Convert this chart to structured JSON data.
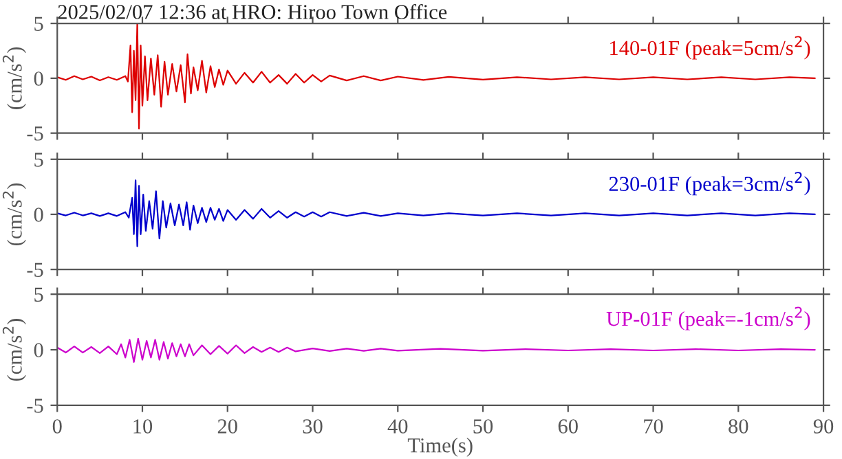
{
  "chart_data": [
    {
      "type": "line",
      "title": "2025/02/07 12:36 at HRO: Hiroo Town Office",
      "ylabel": "(cm/s$^{2}$)",
      "xlim": [
        0,
        90
      ],
      "ylim": [
        -5,
        5
      ],
      "yticks": [
        -5,
        0,
        5
      ],
      "tick_labels": "y",
      "legend": "top right",
      "grid": false,
      "series": [
        {
          "name": "140-01F (peak=5cm/s$^{2}$)",
          "color": "#dd0000",
          "x": [
            0,
            1,
            2,
            3,
            4,
            5,
            6,
            7,
            8,
            8.3,
            8.6,
            8.8,
            9.0,
            9.2,
            9.4,
            9.6,
            9.8,
            10,
            10.3,
            10.6,
            11,
            11.4,
            11.8,
            12.2,
            12.6,
            13,
            13.5,
            14,
            14.5,
            15,
            15.3,
            15.7,
            16,
            16.5,
            17,
            17.5,
            18,
            18.5,
            19,
            19.5,
            20,
            21,
            22,
            23,
            24,
            25,
            26,
            27,
            28,
            29,
            30,
            31,
            32,
            34,
            36,
            38,
            40,
            43,
            46,
            50,
            54,
            58,
            62,
            66,
            70,
            74,
            78,
            82,
            86,
            89
          ],
          "values": [
            0.1,
            -0.15,
            0.2,
            -0.1,
            0.15,
            -0.2,
            0.1,
            -0.15,
            0.2,
            -0.3,
            3,
            -3.1,
            2.5,
            -2,
            5,
            -4.6,
            3,
            -2.5,
            2,
            -2,
            1.8,
            -1.5,
            2.1,
            -2.6,
            1.5,
            -1.5,
            1.3,
            -1.2,
            1.2,
            -2.2,
            2.2,
            -1.4,
            1,
            -1.1,
            1.6,
            -1.3,
            1.1,
            -0.8,
            0.8,
            -0.6,
            0.7,
            -0.5,
            0.5,
            -0.4,
            0.6,
            -0.4,
            0.3,
            -0.5,
            0.4,
            -0.4,
            0.3,
            -0.3,
            0.25,
            -0.2,
            0.2,
            -0.2,
            0.15,
            -0.15,
            0.12,
            -0.12,
            0.1,
            -0.1,
            0.1,
            -0.1,
            0.1,
            -0.1,
            0.1,
            -0.1,
            0.1,
            0
          ]
        }
      ]
    },
    {
      "type": "line",
      "ylabel": "(cm/s$^{2}$)",
      "xlim": [
        0,
        90
      ],
      "ylim": [
        -5,
        5
      ],
      "yticks": [
        -5,
        0,
        5
      ],
      "tick_labels": "y",
      "legend": "top right",
      "grid": false,
      "series": [
        {
          "name": "230-01F (peak=3cm/s$^{2}$)",
          "color": "#0000cc",
          "x": [
            0,
            1,
            2,
            3,
            4,
            5,
            6,
            7,
            8,
            8.4,
            8.8,
            9.0,
            9.2,
            9.4,
            9.6,
            9.8,
            10.1,
            10.4,
            10.8,
            11.2,
            11.6,
            12,
            12.4,
            12.8,
            13.3,
            13.8,
            14.3,
            14.8,
            15.2,
            15.6,
            16,
            16.5,
            17,
            17.5,
            18,
            18.5,
            19,
            19.5,
            20,
            21,
            22,
            23,
            24,
            25,
            26,
            27,
            28,
            29,
            30,
            31,
            32,
            34,
            36,
            38,
            40,
            43,
            46,
            50,
            54,
            58,
            62,
            66,
            70,
            74,
            78,
            82,
            86,
            89
          ],
          "values": [
            0.1,
            -0.1,
            0.15,
            -0.1,
            0.1,
            -0.15,
            0.1,
            -0.15,
            0.2,
            -0.3,
            1.5,
            -1.8,
            3.1,
            -2.9,
            2.6,
            -1.8,
            1.8,
            -1.5,
            1.2,
            -1.3,
            2.1,
            -2.2,
            1.2,
            -1.2,
            1,
            -1,
            0.9,
            -1,
            1.1,
            -1.4,
            0.8,
            -0.8,
            0.6,
            -0.7,
            0.6,
            -0.5,
            0.5,
            -0.6,
            0.4,
            -0.5,
            0.4,
            -0.4,
            0.5,
            -0.3,
            0.3,
            -0.3,
            0.2,
            -0.2,
            0.2,
            -0.2,
            0.2,
            -0.15,
            0.15,
            -0.15,
            0.1,
            -0.1,
            0.1,
            -0.1,
            0.1,
            -0.1,
            0.1,
            -0.1,
            0.1,
            -0.1,
            0.1,
            -0.1,
            0.1,
            0
          ]
        }
      ]
    },
    {
      "type": "line",
      "ylabel": "(cm/s$^{2}$)",
      "xlabel": "Time(s)",
      "xlim": [
        0,
        90
      ],
      "ylim": [
        -5,
        5
      ],
      "xticks": [
        0,
        10,
        20,
        30,
        40,
        50,
        60,
        70,
        80,
        90
      ],
      "yticks": [
        -5,
        0,
        5
      ],
      "legend": "top right",
      "grid": false,
      "series": [
        {
          "name": "UP-01F (peak=-1cm/s$^{2}$)",
          "color": "#cc00cc",
          "x": [
            0,
            1,
            2,
            3,
            4,
            5,
            6,
            7,
            7.5,
            8,
            8.5,
            9,
            9.5,
            10,
            10.5,
            11,
            11.5,
            12,
            12.5,
            13,
            13.5,
            14,
            14.5,
            15,
            15.5,
            16,
            17,
            18,
            19,
            20,
            21,
            22,
            23,
            24,
            25,
            26,
            27,
            28,
            30,
            32,
            34,
            36,
            38,
            40,
            45,
            50,
            55,
            60,
            65,
            70,
            75,
            80,
            85,
            89
          ],
          "values": [
            0.2,
            -0.25,
            0.3,
            -0.25,
            0.25,
            -0.3,
            0.3,
            -0.4,
            0.5,
            -0.7,
            0.9,
            -1.1,
            1,
            -0.9,
            0.8,
            -0.7,
            0.9,
            -0.9,
            0.7,
            -0.8,
            0.6,
            -0.6,
            0.5,
            -0.6,
            0.5,
            -0.5,
            0.4,
            -0.4,
            0.35,
            -0.35,
            0.4,
            -0.3,
            0.25,
            -0.2,
            0.2,
            -0.2,
            0.2,
            -0.15,
            0.12,
            -0.12,
            0.1,
            -0.1,
            0.1,
            -0.08,
            0.08,
            -0.08,
            0.06,
            -0.06,
            0.06,
            -0.06,
            0.06,
            -0.06,
            0.06,
            0
          ]
        }
      ]
    }
  ]
}
